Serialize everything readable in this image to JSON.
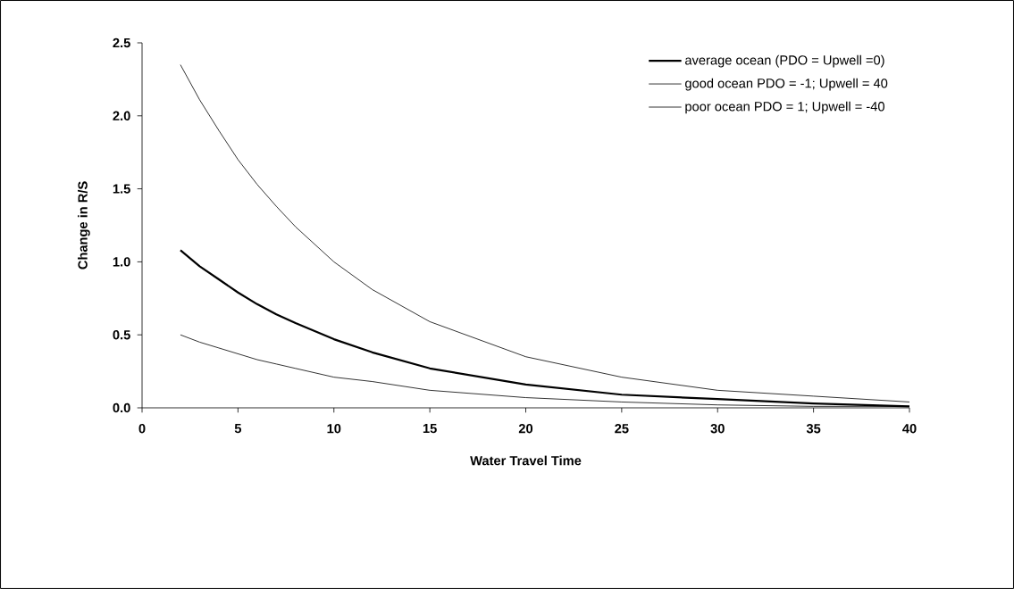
{
  "chart_data": {
    "type": "line",
    "xlabel": "Water Travel Time",
    "ylabel": "Change in R/S",
    "x": [
      2,
      3,
      4,
      5,
      6,
      7,
      8,
      10,
      12,
      15,
      20,
      25,
      30,
      35,
      40
    ],
    "series": [
      {
        "name": "average ocean (PDO = Upwell =0)",
        "color": "#000000",
        "values": [
          1.08,
          0.97,
          0.88,
          0.79,
          0.71,
          0.64,
          0.58,
          0.47,
          0.38,
          0.27,
          0.16,
          0.09,
          0.06,
          0.03,
          0.01
        ]
      },
      {
        "name": "good ocean PDO = -1; Upwell = 40",
        "color": "#000000",
        "values": [
          2.35,
          2.11,
          1.9,
          1.7,
          1.53,
          1.38,
          1.24,
          1.0,
          0.81,
          0.59,
          0.35,
          0.21,
          0.12,
          0.08,
          0.04
        ]
      },
      {
        "name": "poor ocean PDO = 1; Upwell = -40",
        "color": "#000000",
        "values": [
          0.5,
          0.45,
          0.41,
          0.37,
          0.33,
          0.3,
          0.27,
          0.21,
          0.18,
          0.12,
          0.07,
          0.04,
          0.02,
          0.01,
          0.01
        ]
      }
    ],
    "xlim": [
      0,
      40
    ],
    "xticks": [
      0,
      5,
      10,
      15,
      20,
      25,
      30,
      35,
      40
    ],
    "ylim": [
      0,
      2.5
    ],
    "yticks": [
      {
        "value": 0,
        "label": "0.0"
      },
      {
        "value": 0.5,
        "label": "0.5"
      },
      {
        "value": 1,
        "label": "1.0"
      },
      {
        "value": 1.5,
        "label": "1.5"
      },
      {
        "value": 2,
        "label": "2.0"
      },
      {
        "value": 2.5,
        "label": "2.5"
      }
    ],
    "grid": false,
    "legend": "top right",
    "marker": "none",
    "line_style": "solid"
  }
}
